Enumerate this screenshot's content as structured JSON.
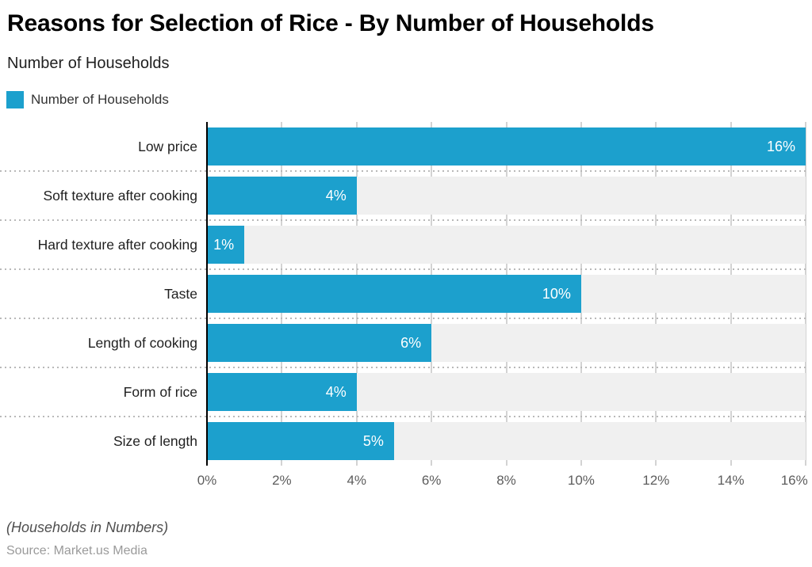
{
  "header": {
    "title": "Reasons for Selection of Rice - By Number of Households",
    "subtitle": "Number of Households"
  },
  "legend": {
    "label": "Number of Households",
    "position": "top-left"
  },
  "chart_data": {
    "type": "bar",
    "orientation": "horizontal",
    "title": "Reasons for Selection of Rice - By Number of Households",
    "series_name": "Number of Households",
    "categories": [
      "Low price",
      "Soft texture after cooking",
      "Hard texture after cooking",
      "Taste",
      "Length of cooking",
      "Form of rice",
      "Size of length"
    ],
    "values": [
      16,
      4,
      1,
      10,
      6,
      4,
      5
    ],
    "value_labels": [
      "16%",
      "4%",
      "1%",
      "10%",
      "6%",
      "4%",
      "5%"
    ],
    "xlabel": "",
    "ylabel": "",
    "xlim": [
      0,
      16
    ],
    "x_ticks": [
      "0%",
      "2%",
      "4%",
      "6%",
      "8%",
      "10%",
      "12%",
      "14%",
      "16%"
    ],
    "grid": true,
    "bar_color": "#1CA0CD",
    "band_color": "#F0F0F0",
    "gridline_color": "#D3D3D3",
    "axis_color": "#000000"
  },
  "footer": {
    "note": "(Households in Numbers)",
    "source": "Source: Market.us Media"
  }
}
